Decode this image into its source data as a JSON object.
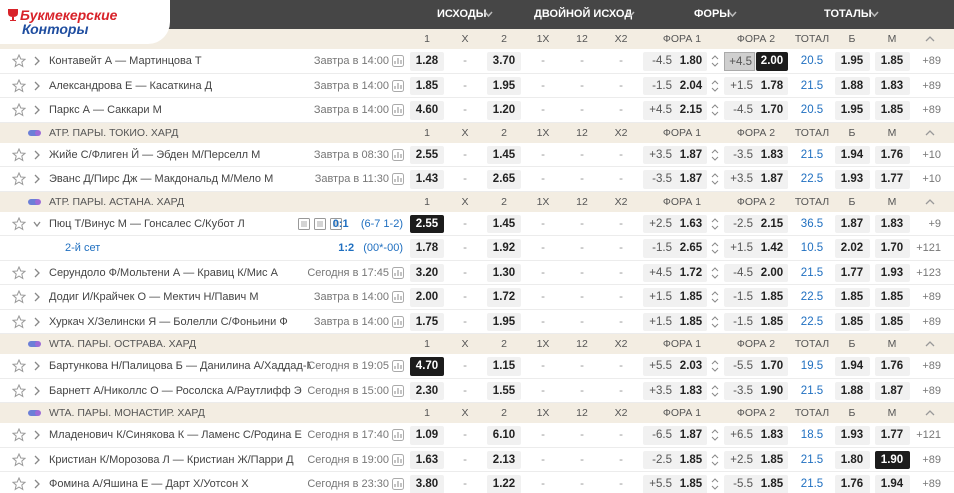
{
  "logo": {
    "line1": "Букмекерские",
    "line2": "Конторы"
  },
  "header": [
    "ИСХОДЫ",
    "ДВОЙНОЙ ИСХОД",
    "ФОРЫ",
    "ТОТАЛЫ"
  ],
  "columns": [
    "1",
    "X",
    "2",
    "1X",
    "12",
    "X2",
    "ФОРА 1",
    "ФОРА 2",
    "ТОТАЛ",
    "Б",
    "М"
  ],
  "sections": [
    {
      "events": [
        {
          "name": "Контавейт А — Мартинцова Т",
          "time": "Завтра в 14:00",
          "odds": [
            "1.28",
            "-",
            "3.70",
            "-",
            "-",
            "-"
          ],
          "fora1": [
            "-4.5",
            "1.80"
          ],
          "fora2": [
            "+4.5",
            "2.00"
          ],
          "total": [
            "20.5",
            "1.95",
            "1.85"
          ],
          "more": "+89"
        },
        {
          "name": "Александрова Е — Касаткина Д",
          "time": "Завтра в 14:00",
          "odds": [
            "1.85",
            "-",
            "1.95",
            "-",
            "-",
            "-"
          ],
          "fora1": [
            "-1.5",
            "2.04"
          ],
          "fora2": [
            "+1.5",
            "1.78"
          ],
          "total": [
            "21.5",
            "1.88",
            "1.83"
          ],
          "more": "+89"
        },
        {
          "name": "Паркс А — Саккари М",
          "time": "Завтра в 14:00",
          "odds": [
            "4.60",
            "-",
            "1.20",
            "-",
            "-",
            "-"
          ],
          "fora1": [
            "+4.5",
            "2.15"
          ],
          "fora2": [
            "-4.5",
            "1.70"
          ],
          "total": [
            "20.5",
            "1.95",
            "1.85"
          ],
          "more": "+89"
        }
      ]
    },
    {
      "league": "АТР. ПАРЫ. ТОКИО. ХАРД",
      "events": [
        {
          "name": "Жийе С/Флиген Й — Эбден М/Перселл М",
          "time": "Завтра в 08:30",
          "odds": [
            "2.55",
            "-",
            "1.45",
            "-",
            "-",
            "-"
          ],
          "fora1": [
            "+3.5",
            "1.87"
          ],
          "fora2": [
            "-3.5",
            "1.83"
          ],
          "total": [
            "21.5",
            "1.94",
            "1.76"
          ],
          "more": "+10"
        },
        {
          "name": "Эванс Д/Пирс Дж — Макдональд М/Мело М",
          "time": "Завтра в 11:30",
          "odds": [
            "1.43",
            "-",
            "2.65",
            "-",
            "-",
            "-"
          ],
          "fora1": [
            "-3.5",
            "1.87"
          ],
          "fora2": [
            "+3.5",
            "1.87"
          ],
          "total": [
            "22.5",
            "1.93",
            "1.77"
          ],
          "more": "+10"
        }
      ]
    },
    {
      "league": "АТР. ПАРЫ. АСТАНА. ХАРД",
      "events": [
        {
          "name": "Пюц Т/Винус М — Гонсалес С/Кубот Л",
          "score": "0:1",
          "score_detail": "(6-7 1-2)",
          "odds": [
            "2.55",
            "-",
            "1.45",
            "-",
            "-",
            "-"
          ],
          "fora1": [
            "+2.5",
            "1.63"
          ],
          "fora2": [
            "-2.5",
            "2.15"
          ],
          "total": [
            "36.5",
            "1.87",
            "1.83"
          ],
          "more": "+9"
        },
        {
          "name": "2-й сет",
          "score": "1:2",
          "score_detail": "(00*-00)",
          "odds": [
            "1.78",
            "-",
            "1.92",
            "-",
            "-",
            "-"
          ],
          "fora1": [
            "-1.5",
            "2.65"
          ],
          "fora2": [
            "+1.5",
            "1.42"
          ],
          "total": [
            "10.5",
            "2.02",
            "1.70"
          ],
          "more": "+121"
        },
        {
          "name": "Серундоло Ф/Мольтени А — Кравиц К/Мис А",
          "time": "Сегодня в 17:45",
          "odds": [
            "3.20",
            "-",
            "1.30",
            "-",
            "-",
            "-"
          ],
          "fora1": [
            "+4.5",
            "1.72"
          ],
          "fora2": [
            "-4.5",
            "2.00"
          ],
          "total": [
            "21.5",
            "1.77",
            "1.93"
          ],
          "more": "+123"
        },
        {
          "name": "Додиг И/Крайчек О — Мектич Н/Павич М",
          "time": "Завтра в 14:00",
          "odds": [
            "2.00",
            "-",
            "1.72",
            "-",
            "-",
            "-"
          ],
          "fora1": [
            "+1.5",
            "1.85"
          ],
          "fora2": [
            "-1.5",
            "1.85"
          ],
          "total": [
            "22.5",
            "1.85",
            "1.85"
          ],
          "more": "+89"
        },
        {
          "name": "Хуркач Х/Зелински Я — Болелли С/Фоньини Ф",
          "time": "Завтра в 14:00",
          "odds": [
            "1.75",
            "-",
            "1.95",
            "-",
            "-",
            "-"
          ],
          "fora1": [
            "+1.5",
            "1.85"
          ],
          "fora2": [
            "-1.5",
            "1.85"
          ],
          "total": [
            "22.5",
            "1.85",
            "1.85"
          ],
          "more": "+89"
        }
      ]
    },
    {
      "league": "WTA. ПАРЫ. ОСТРАВА. ХАРД",
      "events": [
        {
          "name": "Бартункова Н/Палицова Б — Данилина А/Хаддад-М...",
          "time": "Сегодня в 19:05",
          "odds": [
            "4.70",
            "-",
            "1.15",
            "-",
            "-",
            "-"
          ],
          "fora1": [
            "+5.5",
            "2.03"
          ],
          "fora2": [
            "-5.5",
            "1.70"
          ],
          "total": [
            "19.5",
            "1.94",
            "1.76"
          ],
          "more": "+89"
        },
        {
          "name": "Барнетт А/Николлс О — Росолска А/Раутлифф Э",
          "time": "Сегодня в 15:00",
          "odds": [
            "2.30",
            "-",
            "1.55",
            "-",
            "-",
            "-"
          ],
          "fora1": [
            "+3.5",
            "1.83"
          ],
          "fora2": [
            "-3.5",
            "1.90"
          ],
          "total": [
            "21.5",
            "1.88",
            "1.87"
          ],
          "more": "+89"
        }
      ]
    },
    {
      "league": "WTA. ПАРЫ. МОНАСТИР. ХАРД",
      "events": [
        {
          "name": "Младенович К/Синякова К — Ламенс С/Родина Е",
          "time": "Сегодня в 17:40",
          "odds": [
            "1.09",
            "-",
            "6.10",
            "-",
            "-",
            "-"
          ],
          "fora1": [
            "-6.5",
            "1.87"
          ],
          "fora2": [
            "+6.5",
            "1.83"
          ],
          "total": [
            "18.5",
            "1.93",
            "1.77"
          ],
          "more": "+121"
        },
        {
          "name": "Кристиан К/Морозова Л — Кристиан Ж/Парри Д",
          "time": "Сегодня в 19:00",
          "odds": [
            "1.63",
            "-",
            "2.13",
            "-",
            "-",
            "-"
          ],
          "fora1": [
            "-2.5",
            "1.85"
          ],
          "fora2": [
            "+2.5",
            "1.85"
          ],
          "total": [
            "21.5",
            "1.80",
            "1.90"
          ],
          "more": "+89"
        },
        {
          "name": "Фомина А/Яшина Е — Дарт Х/Уотсон Х",
          "time": "Сегодня в 23:30",
          "odds": [
            "3.80",
            "-",
            "1.22",
            "-",
            "-",
            "-"
          ],
          "fora1": [
            "+5.5",
            "1.85"
          ],
          "fora2": [
            "-5.5",
            "1.85"
          ],
          "total": [
            "21.5",
            "1.76",
            "1.94"
          ],
          "more": "+89"
        }
      ]
    }
  ]
}
